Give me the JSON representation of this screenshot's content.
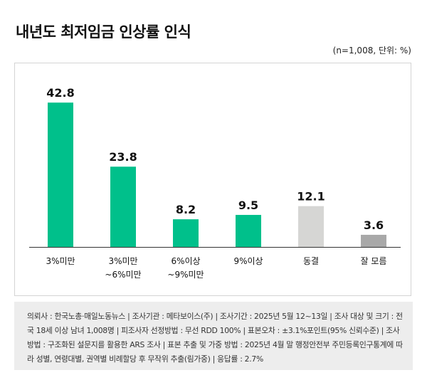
{
  "title": "내년도 최저임금 인상률 인식",
  "unit_note": "(n=1,008, 단위: %)",
  "colors": {
    "accent": "#00c08b",
    "neutral": "#d6d6d4",
    "dark_gray": "#a8a8a8",
    "axis": "#333333"
  },
  "chart_data": {
    "type": "bar",
    "title": "내년도 최저임금 인상률 인식",
    "categories": [
      [
        "3%미만"
      ],
      [
        "3%미만",
        "~6%미만"
      ],
      [
        "6%이상",
        "~9%미만"
      ],
      [
        "9%이상"
      ],
      [
        "동결"
      ],
      [
        "잘 모름"
      ]
    ],
    "values": [
      42.8,
      23.8,
      8.2,
      9.5,
      12.1,
      3.6
    ],
    "value_labels": [
      "42.8",
      "23.8",
      "8.2",
      "9.5",
      "12.1",
      "3.6"
    ],
    "bar_colors": [
      "#00c08b",
      "#00c08b",
      "#00c08b",
      "#00c08b",
      "#d6d6d4",
      "#a8a8a8"
    ],
    "xlabel": "",
    "ylabel": "",
    "ylim": [
      0,
      46
    ],
    "grid": false,
    "legend": "none"
  },
  "survey_note": "의뢰사 : 한국노총·매일노동뉴스 | 조사기관 : 메타보이스(주) | 조사기간 : 2025년 5월 12~13일 | 조사 대상 및 크기 : 전국 18세 이상 남녀 1,008명 | 피조사자 선정방법 : 무선 RDD 100% | 표본오차 : ±3.1%포인트(95% 신뢰수준) | 조사방법 : 구조화된 설문지를 활용한 ARS 조사 | 표본 추출 및 가중 방법 : 2025년 4월 말 행정안전부 주민등록인구통계에 따라 성별, 연령대별, 권역별 비례할당 후 무작위 추출(림가중) | 응답률 : 2.7%"
}
